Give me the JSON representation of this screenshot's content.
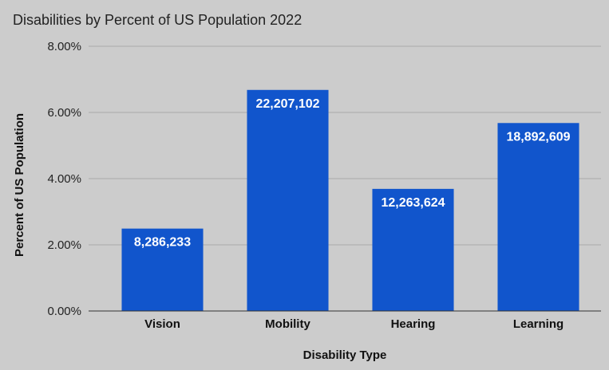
{
  "chart_data": {
    "type": "bar",
    "title": "Disabilities by Percent of US Population 2022",
    "xlabel": "Disability Type",
    "ylabel": "Percent of US Population",
    "categories": [
      "Vision",
      "Mobility",
      "Hearing",
      "Learning"
    ],
    "values": [
      2.49,
      6.68,
      3.69,
      5.68
    ],
    "data_labels": [
      "8,286,233",
      "22,207,102",
      "12,263,624",
      "18,892,609"
    ],
    "ylim": [
      0,
      8
    ],
    "yticks": [
      0,
      2,
      4,
      6,
      8
    ],
    "ytick_labels": [
      "0.00%",
      "2.00%",
      "4.00%",
      "6.00%",
      "8.00%"
    ],
    "grid": true,
    "legend": "none",
    "colors": {
      "bar": "#1155cc",
      "background": "#cccccc",
      "grid": "#aaaaaa",
      "baseline": "#333333"
    }
  }
}
